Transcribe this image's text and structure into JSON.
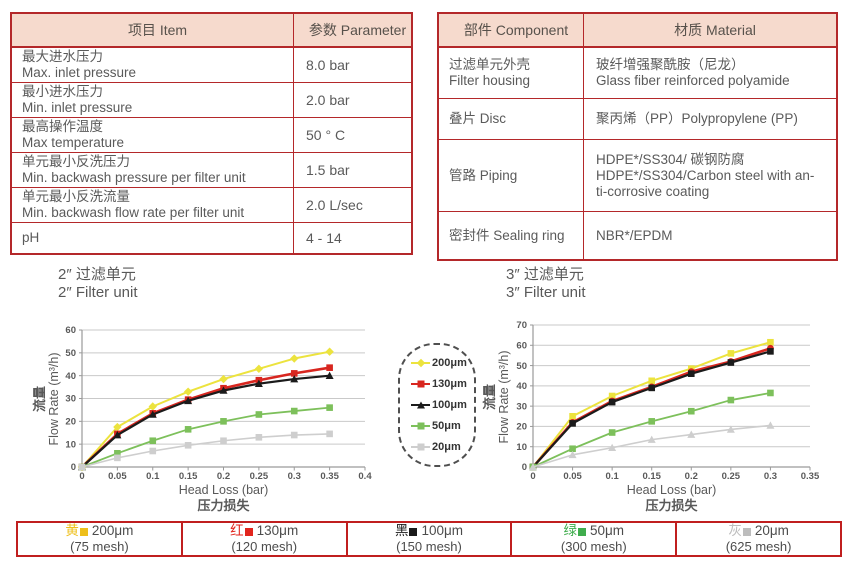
{
  "colors": {
    "table_border": "#b4282a",
    "table_header_bg": "#f6dacd",
    "key_bar_border": "#c01f1f",
    "body_text": "#5a5a5a"
  },
  "left_table": {
    "headers": [
      "项目 Item",
      "参数 Parameter"
    ],
    "rows": [
      {
        "item_zh": "最大进水压力",
        "item_en": "Max. inlet pressure",
        "value": "8.0 bar"
      },
      {
        "item_zh": "最小进水压力",
        "item_en": "Min. inlet pressure",
        "value": "2.0 bar"
      },
      {
        "item_zh": "最高操作温度",
        "item_en": "Max temperature",
        "value": "50 ° C"
      },
      {
        "item_zh": "单元最小反洗压力",
        "item_en": "Min. backwash pressure per filter unit",
        "value": "1.5 bar"
      },
      {
        "item_zh": "单元最小反洗流量",
        "item_en": "Min. backwash flow rate per filter unit",
        "value": "2.0 L/sec"
      },
      {
        "item_zh": "pH",
        "item_en": "",
        "value": "4 - 14"
      }
    ]
  },
  "right_table": {
    "headers": [
      "部件 Component",
      "材质 Material"
    ],
    "rows": [
      {
        "component": [
          "过滤单元外壳",
          "Filter housing"
        ],
        "material": [
          "玻纤增强聚酰胺（尼龙）",
          "Glass fiber reinforced polyamide"
        ]
      },
      {
        "component": [
          "叠片 Disc"
        ],
        "material": [
          "聚丙烯（PP）Polypropylene (PP)"
        ]
      },
      {
        "component": [
          "管路 Piping"
        ],
        "material": [
          "HDPE*/SS304/ 碳钢防腐",
          "HDPE*/SS304/Carbon steel with an-",
          "ti-corrosive coating"
        ]
      },
      {
        "component": [
          "密封件 Sealing ring"
        ],
        "material": [
          "NBR*/EPDM"
        ]
      }
    ]
  },
  "chart_data": [
    {
      "type": "line",
      "title_zh": "2″  过滤单元",
      "title_en": "2″  Filter unit",
      "xlabel": "Head Loss (bar)",
      "xlabel_zh": "压力损失",
      "ylabel_zh": "流量",
      "ylabel_en": "Flow Rate (m³/h)",
      "xlim": [
        0,
        0.4
      ],
      "ylim": [
        0,
        60
      ],
      "xticks": [
        "0",
        "0.05",
        "0.1",
        "0.15",
        "0.2",
        "0.25",
        "0.3",
        "0.35",
        "0.4"
      ],
      "yticks": [
        0,
        10,
        20,
        30,
        40,
        50,
        60
      ],
      "x": [
        0,
        0.05,
        0.1,
        0.15,
        0.2,
        0.25,
        0.3,
        0.35
      ],
      "grid": true,
      "series": [
        {
          "name": "200μm",
          "color": "#ece33e",
          "marker": "diamond",
          "width": 2,
          "values": [
            0,
            17.5,
            26.5,
            33,
            38.5,
            43,
            47.5,
            50.5
          ]
        },
        {
          "name": "130μm",
          "color": "#d8261f",
          "marker": "square",
          "width": 2.6,
          "values": [
            0,
            14.5,
            23.5,
            29.5,
            34.5,
            38,
            41,
            43.5
          ]
        },
        {
          "name": "100μm",
          "color": "#1b1b1b",
          "marker": "triangle",
          "width": 2.2,
          "values": [
            0,
            14,
            23,
            29,
            33.5,
            36.5,
            38.5,
            40
          ]
        },
        {
          "name": "50μm",
          "color": "#7dc05b",
          "marker": "square",
          "width": 1.8,
          "values": [
            0,
            6,
            11.5,
            16.5,
            20,
            23,
            24.5,
            26
          ]
        },
        {
          "name": "20μm",
          "color": "#cecece",
          "marker": "square",
          "width": 1.6,
          "values": [
            0,
            4,
            7,
            9.5,
            11.5,
            13,
            14,
            14.5
          ]
        }
      ]
    },
    {
      "type": "line",
      "title_zh": "3″  过滤单元",
      "title_en": "3″  Filter unit",
      "xlabel": "Head Loss (bar)",
      "xlabel_zh": "压力损失",
      "ylabel_zh": "流量",
      "ylabel_en": "Flow Rate (m³/h)",
      "xlim": [
        0,
        0.35
      ],
      "ylim": [
        0,
        70
      ],
      "xticks": [
        "0",
        "0.05",
        "0.1",
        "0.15",
        "0.2",
        "0.25",
        "0.3",
        "0.35"
      ],
      "yticks": [
        0,
        10,
        20,
        30,
        40,
        50,
        60,
        70
      ],
      "x": [
        0,
        0.05,
        0.1,
        0.15,
        0.2,
        0.25,
        0.3
      ],
      "grid": true,
      "series": [
        {
          "name": "200μm",
          "color": "#ece33e",
          "marker": "square",
          "width": 2,
          "values": [
            0,
            25,
            35,
            42.5,
            48.5,
            56,
            61.5
          ]
        },
        {
          "name": "130μm",
          "color": "#d8261f",
          "marker": "circle",
          "width": 2.6,
          "values": [
            0,
            22,
            32.5,
            39.5,
            47,
            52,
            58.5
          ]
        },
        {
          "name": "100μm",
          "color": "#1b1b1b",
          "marker": "square",
          "width": 2.2,
          "values": [
            0,
            21.5,
            32,
            39,
            46,
            51.5,
            57
          ]
        },
        {
          "name": "50μm",
          "color": "#7dc05b",
          "marker": "square",
          "width": 1.8,
          "values": [
            0,
            9,
            17,
            22.5,
            27.5,
            33,
            36.5
          ]
        },
        {
          "name": "20μm",
          "color": "#cecece",
          "marker": "triangle",
          "width": 1.6,
          "values": [
            0,
            6,
            9.5,
            13.5,
            16,
            18.5,
            20.5
          ]
        }
      ]
    }
  ],
  "center_legend": {
    "items": [
      {
        "label": "200μm",
        "color": "#ece33e",
        "marker": "diamond"
      },
      {
        "label": "130μm",
        "color": "#d8261f",
        "marker": "square"
      },
      {
        "label": "100μm",
        "color": "#1b1b1b",
        "marker": "triangle"
      },
      {
        "label": "50μm",
        "color": "#7dc05b",
        "marker": "square"
      },
      {
        "label": "20μm",
        "color": "#cecece",
        "marker": "square"
      }
    ]
  },
  "bottom_legend": {
    "cells": [
      {
        "color_name_zh": "黄",
        "color": "#eebf1b",
        "label": "200μm",
        "mesh": "(75 mesh)"
      },
      {
        "color_name_zh": "红",
        "color": "#e2251d",
        "label": "130μm",
        "mesh": "(120 mesh)"
      },
      {
        "color_name_zh": "黑",
        "color": "#1a1a1a",
        "label": "100μm",
        "mesh": "(150 mesh)"
      },
      {
        "color_name_zh": "绿",
        "color": "#3fad4d",
        "label": "50μm",
        "mesh": "(300 mesh)"
      },
      {
        "color_name_zh": "灰",
        "color": "#bdbdbd",
        "label": "20μm",
        "mesh": "(625 mesh)"
      }
    ]
  }
}
